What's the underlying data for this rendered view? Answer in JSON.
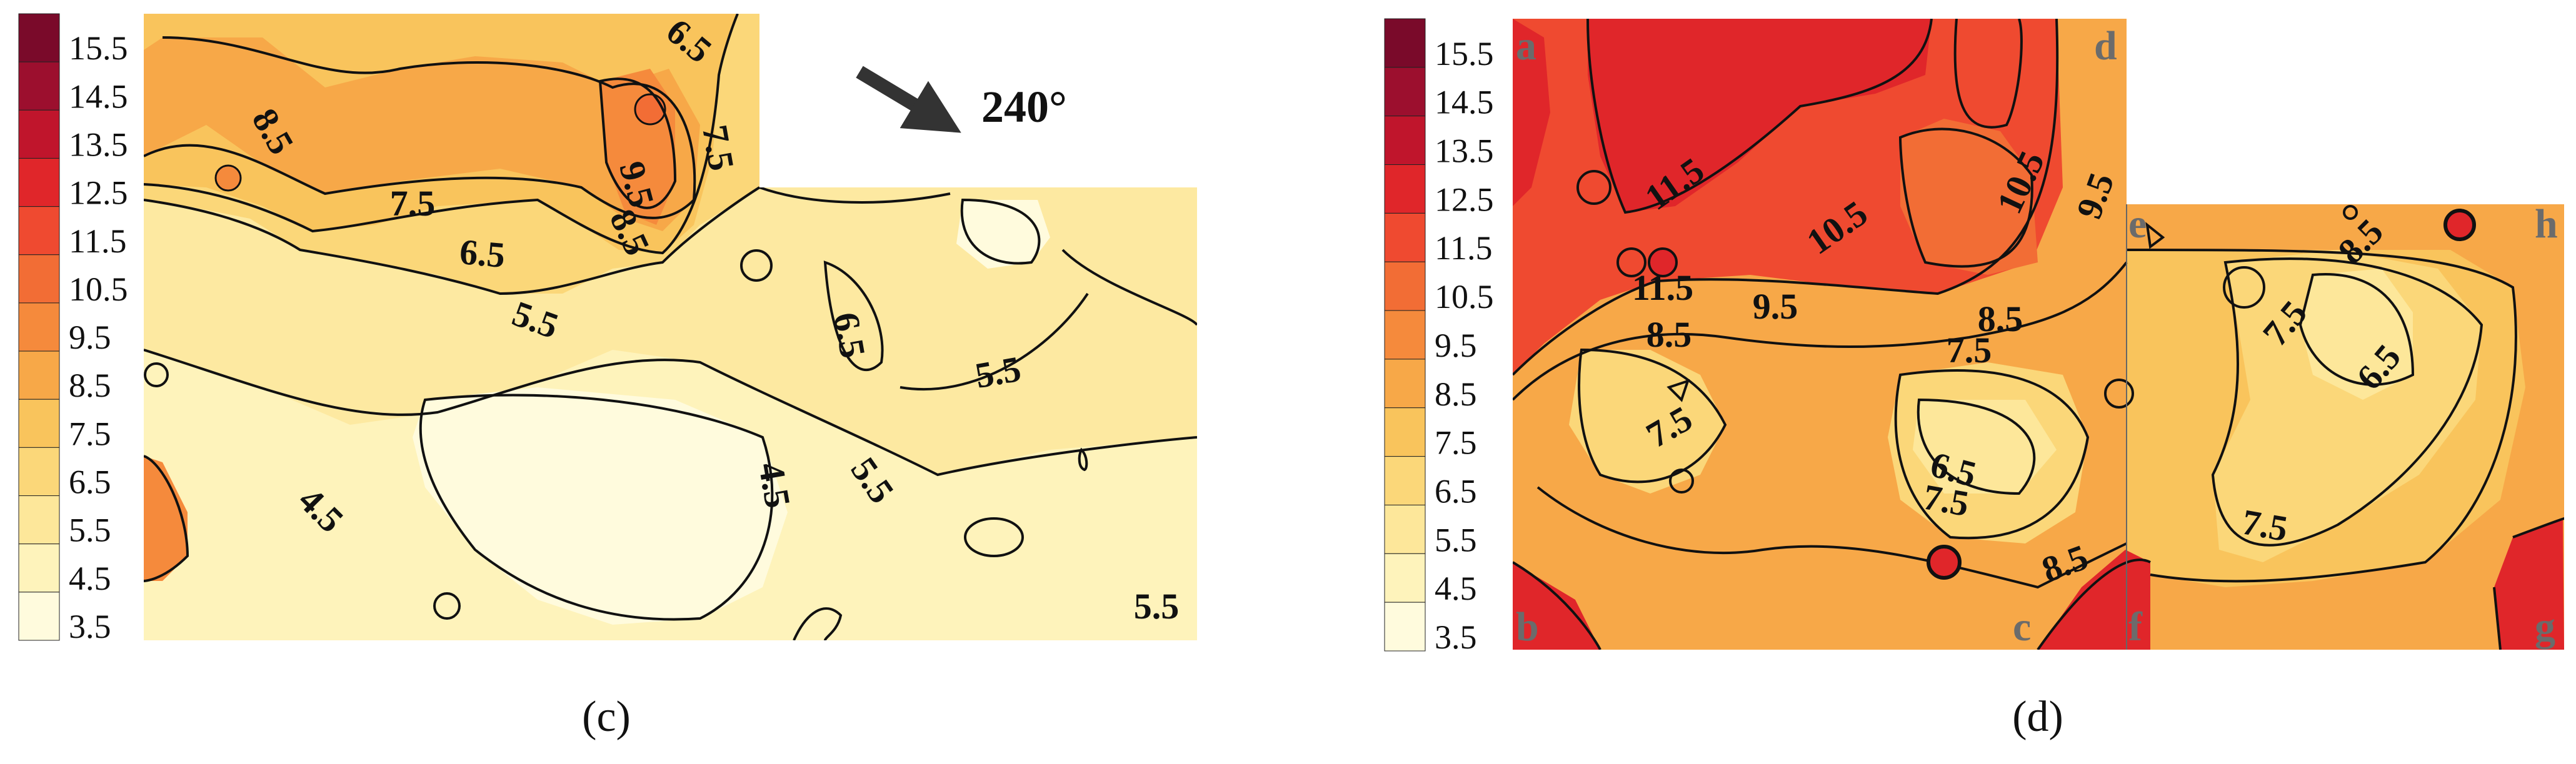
{
  "chart_data": [
    {
      "type": "heatmap",
      "caption": "(c)",
      "colorbar": {
        "ticks": [
          "15.5",
          "14.5",
          "13.5",
          "12.5",
          "11.5",
          "10.5",
          "9.5",
          "8.5",
          "7.5",
          "6.5",
          "5.5",
          "4.5",
          "3.5"
        ],
        "colors": [
          "#7a0a2a",
          "#9c0f2e",
          "#c0152c",
          "#e0262a",
          "#ef4a30",
          "#f26d35",
          "#f58a3c",
          "#f7a848",
          "#f9c45c",
          "#fbd779",
          "#fde79a",
          "#fef3bb",
          "#fffbdd"
        ]
      },
      "wind": {
        "label": "240°",
        "degrees": 240
      },
      "contour_labels": [
        "6.5",
        "8.5",
        "7.5",
        "9.5",
        "8.5",
        "7.5",
        "6.5",
        "5.5",
        "4.5",
        "6.5",
        "5.5",
        "5.5",
        "4.5",
        "5.5"
      ],
      "corner_labels": []
    },
    {
      "type": "heatmap",
      "caption": "(d)",
      "colorbar": {
        "ticks": [
          "15.5",
          "14.5",
          "13.5",
          "12.5",
          "11.5",
          "10.5",
          "9.5",
          "8.5",
          "7.5",
          "6.5",
          "5.5",
          "4.5",
          "3.5"
        ],
        "colors": [
          "#7a0a2a",
          "#9c0f2e",
          "#c0152c",
          "#e0262a",
          "#ef4a30",
          "#f26d35",
          "#f58a3c",
          "#f7a848",
          "#f9c45c",
          "#fbd779",
          "#fde79a",
          "#fef3bb",
          "#fffbdd"
        ]
      },
      "contour_labels": [
        "11.5",
        "10.5",
        "10.5",
        "9.5",
        "11.5",
        "9.5",
        "8.5",
        "8.5",
        "7.5",
        "7.5",
        "6.5",
        "7.5",
        "8.5",
        "8.5",
        "7.5",
        "6.5",
        "7.5"
      ],
      "corner_labels": [
        "a",
        "b",
        "c",
        "d",
        "e",
        "f",
        "g",
        "h"
      ]
    }
  ]
}
